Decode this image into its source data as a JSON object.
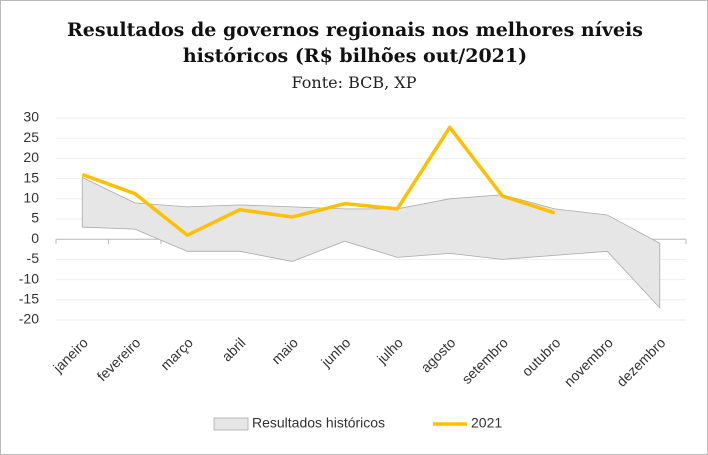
{
  "chart_data": {
    "type": "line",
    "title": "Resultados de governos regionais nos melhores níveis históricos (R$ bilhões out/2021)",
    "subtitle": "Fonte: BCB, XP",
    "categories": [
      "janeiro",
      "fevereiro",
      "março",
      "abril",
      "maio",
      "junho",
      "julho",
      "agosto",
      "setembro",
      "outubro",
      "novembro",
      "dezembro"
    ],
    "series": [
      {
        "name": "Resultados históricos",
        "color": "#e6e6e6",
        "values": [
          15.3,
          9,
          8,
          8.5,
          8,
          7.5,
          7.5,
          10,
          11,
          7.5,
          6,
          -1
        ],
        "lower": [
          3,
          2.5,
          -3,
          -3,
          -5.5,
          -0.5,
          -4.5,
          -3.5,
          -5,
          -4,
          -3,
          -17
        ]
      },
      {
        "name": "2021",
        "color": "#ffc000",
        "values": [
          16,
          11.3,
          1,
          7.3,
          5.5,
          8.8,
          7.5,
          27.7,
          10.7,
          6.5,
          null,
          null
        ]
      }
    ],
    "ylim": [
      -20,
      30
    ],
    "yticks": [
      30,
      25,
      20,
      15,
      10,
      5,
      0,
      -5,
      -10,
      -15,
      -20
    ],
    "grid": true
  }
}
